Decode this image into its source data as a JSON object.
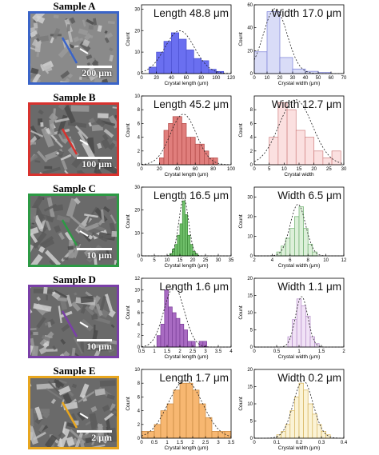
{
  "panels": [
    {
      "title": "Sample A",
      "color": "#3a64c8",
      "scale_label": "200 μm",
      "length": {
        "annotation": "Length 48.8 μm",
        "fill": "#6a6ff0",
        "stroke": "#4a4fcf",
        "xlabel": "Crystal length (μm)",
        "ylabel": "Count",
        "xlim": [
          0,
          120
        ],
        "ylim": [
          0,
          32
        ],
        "xticks": [
          0,
          20,
          40,
          60,
          80,
          100,
          120
        ],
        "yticks": [
          0,
          10,
          20,
          30
        ],
        "bin_starts": [
          10,
          20,
          30,
          40,
          50,
          60,
          70,
          80,
          90,
          100
        ],
        "bin_width": 10,
        "values": [
          3,
          10,
          15,
          19,
          16,
          11,
          7,
          6,
          2,
          1
        ]
      },
      "width": {
        "annotation": "Width 17.0 μm",
        "fill": "#d9dcf7",
        "stroke": "#7a7fd8",
        "xlabel": "Crystal width (μm)",
        "ylabel": "Count",
        "xlim": [
          0,
          70
        ],
        "ylim": [
          0,
          60
        ],
        "xticks": [
          0,
          10,
          20,
          30,
          40,
          50,
          60,
          70
        ],
        "yticks": [
          0,
          20,
          40,
          60
        ],
        "bin_starts": [
          0,
          10,
          20,
          30,
          40,
          50
        ],
        "bin_width": 10,
        "values": [
          19,
          54,
          14,
          4,
          2,
          1
        ]
      }
    },
    {
      "title": "Sample B",
      "color": "#d8322e",
      "scale_label": "100 μm",
      "length": {
        "annotation": "Length 45.2 μm",
        "fill": "#e07e7c",
        "stroke": "#b24a48",
        "xlabel": "Crystal length (μm)",
        "ylabel": "Count",
        "xlim": [
          0,
          100
        ],
        "ylim": [
          0,
          10
        ],
        "xticks": [
          0,
          20,
          40,
          60,
          80,
          100
        ],
        "yticks": [
          0,
          2,
          4,
          6,
          8,
          10
        ],
        "bin_starts": [
          20,
          25,
          30,
          35,
          40,
          45,
          50,
          55,
          60,
          65,
          70,
          75,
          80
        ],
        "bin_width": 5,
        "values": [
          1,
          5,
          6,
          7,
          7,
          6,
          4,
          4,
          3,
          3,
          2,
          1,
          1
        ]
      },
      "width": {
        "annotation": "Width 12.7 μm",
        "fill": "#fbe0e0",
        "stroke": "#d08080",
        "xlabel": "Crystal width",
        "ylabel": "Count",
        "xlim": [
          0,
          30
        ],
        "ylim": [
          0,
          10
        ],
        "xticks": [
          0,
          5,
          10,
          15,
          20,
          25,
          30
        ],
        "yticks": [
          0,
          2,
          4,
          6,
          8
        ],
        "bin_starts": [
          5,
          8,
          11,
          14,
          17,
          20,
          23,
          26
        ],
        "bin_width": 3,
        "values": [
          4,
          9,
          8,
          5,
          4,
          2,
          1,
          2
        ]
      }
    },
    {
      "title": "Sample C",
      "color": "#2c9a44",
      "scale_label": "10 μm",
      "length": {
        "annotation": "Length 16.5 μm",
        "fill": "#6fbf6a",
        "stroke": "#3c8a38",
        "xlabel": "Crystal length (μm)",
        "ylabel": "Count",
        "xlim": [
          0,
          35
        ],
        "ylim": [
          0,
          30
        ],
        "xticks": [
          0,
          5,
          10,
          15,
          20,
          25,
          30,
          35
        ],
        "yticks": [
          0,
          10,
          20,
          30
        ],
        "bin_starts": [
          11,
          12,
          13,
          14,
          15,
          16,
          17,
          18,
          19,
          20,
          21
        ],
        "bin_width": 1,
        "values": [
          1,
          3,
          5,
          9,
          14,
          24,
          18,
          9,
          5,
          2,
          1
        ]
      },
      "width": {
        "annotation": "Width 6.5 μm",
        "fill": "#ddf0da",
        "stroke": "#70b070",
        "xlabel": "Crystal width (μm)",
        "ylabel": "Count",
        "xlim": [
          2,
          12
        ],
        "ylim": [
          0,
          35
        ],
        "xticks": [
          2,
          4,
          6,
          8,
          10,
          12
        ],
        "yticks": [
          0,
          10,
          20,
          30
        ],
        "bin_starts": [
          4.5,
          5,
          5.5,
          6,
          6.5,
          7,
          7.5,
          8,
          8.5
        ],
        "bin_width": 0.5,
        "values": [
          2,
          5,
          9,
          14,
          20,
          25,
          14,
          6,
          2
        ]
      }
    },
    {
      "title": "Sample D",
      "color": "#7a3fa8",
      "scale_label": "10 μm",
      "length": {
        "annotation": "Length 1.6 μm",
        "fill": "#a86ac2",
        "stroke": "#7a3f98",
        "xlabel": "Crystal length (μm)",
        "ylabel": "Count",
        "xlim": [
          0.5,
          4.0
        ],
        "ylim": [
          0,
          12
        ],
        "xticks": [
          0.5,
          1.0,
          1.5,
          2.0,
          2.5,
          3.0,
          3.5,
          4.0
        ],
        "yticks": [
          0,
          2,
          4,
          6,
          8,
          10,
          12
        ],
        "bin_starts": [
          1.1,
          1.25,
          1.4,
          1.55,
          1.7,
          1.85,
          2.0,
          2.15,
          2.3,
          2.45,
          2.6,
          2.75,
          2.9
        ],
        "bin_width": 0.15,
        "values": [
          2,
          4,
          10,
          7,
          6,
          5,
          4,
          3,
          1,
          1,
          0,
          1,
          1
        ]
      },
      "width": {
        "annotation": "Width 1.1 μm",
        "fill": "#f1e2f6",
        "stroke": "#b48cc8",
        "xlabel": "Crystal width (μm)",
        "ylabel": "Count",
        "xlim": [
          0.0,
          2.0
        ],
        "ylim": [
          0,
          20
        ],
        "xticks": [
          0.0,
          0.5,
          1.0,
          1.5,
          2.0
        ],
        "yticks": [
          0,
          5,
          10,
          15,
          20
        ],
        "bin_starts": [
          0.75,
          0.85,
          0.95,
          1.05,
          1.15,
          1.25,
          1.35
        ],
        "bin_width": 0.1,
        "values": [
          3,
          8,
          14,
          12,
          9,
          3,
          1
        ]
      }
    },
    {
      "title": "Sample E",
      "color": "#e8a61e",
      "scale_label": "2 μm",
      "length": {
        "annotation": "Length 1.7 μm",
        "fill": "#f7b771",
        "stroke": "#c78840",
        "xlabel": "Crystal length (μm)",
        "ylabel": "Count",
        "xlim": [
          0.0,
          3.5
        ],
        "ylim": [
          0,
          10
        ],
        "xticks": [
          0.0,
          0.5,
          1.0,
          1.5,
          2.0,
          2.5,
          3.0,
          3.5
        ],
        "yticks": [
          0,
          2,
          4,
          6,
          8,
          10
        ],
        "bin_starts": [
          0.0,
          0.25,
          0.5,
          0.75,
          1.0,
          1.25,
          1.5,
          1.75,
          2.0,
          2.25,
          2.5,
          2.75,
          3.0,
          3.25
        ],
        "bin_width": 0.25,
        "values": [
          1,
          1,
          2,
          4,
          5,
          7,
          8,
          8,
          7,
          5,
          3,
          1,
          1,
          1
        ]
      },
      "width": {
        "annotation": "Width 0.2 μm",
        "fill": "#fbf3d6",
        "stroke": "#d6b45c",
        "xlabel": "Crystal width (μm)",
        "ylabel": "Count",
        "xlim": [
          0.0,
          0.4
        ],
        "ylim": [
          0,
          20
        ],
        "xticks": [
          0.0,
          0.1,
          0.2,
          0.3,
          0.4
        ],
        "yticks": [
          0,
          5,
          10,
          15,
          20
        ],
        "bin_starts": [
          0.1,
          0.12,
          0.14,
          0.16,
          0.18,
          0.2,
          0.22,
          0.24,
          0.26,
          0.28,
          0.3,
          0.32
        ],
        "bin_width": 0.02,
        "values": [
          1,
          2,
          4,
          8,
          12,
          16,
          14,
          10,
          7,
          4,
          2,
          1
        ]
      }
    }
  ],
  "chart_data": [
    {
      "type": "bar",
      "title": "Length 48.8 μm",
      "xlabel": "Crystal length (μm)",
      "ylabel": "Count",
      "xlim": [
        0,
        120
      ],
      "ylim": [
        0,
        32
      ],
      "categories": [
        "10-20",
        "20-30",
        "30-40",
        "40-50",
        "50-60",
        "60-70",
        "70-80",
        "80-90",
        "90-100",
        "100-110"
      ],
      "values": [
        3,
        10,
        15,
        19,
        16,
        11,
        7,
        6,
        2,
        1
      ]
    },
    {
      "type": "bar",
      "title": "Width 17.0 μm",
      "xlabel": "Crystal width (μm)",
      "ylabel": "Count",
      "xlim": [
        0,
        70
      ],
      "ylim": [
        0,
        60
      ],
      "categories": [
        "0-10",
        "10-20",
        "20-30",
        "30-40",
        "40-50",
        "50-60"
      ],
      "values": [
        19,
        54,
        14,
        4,
        2,
        1
      ]
    },
    {
      "type": "bar",
      "title": "Length 45.2 μm",
      "xlabel": "Crystal length (μm)",
      "ylabel": "Count",
      "xlim": [
        0,
        100
      ],
      "ylim": [
        0,
        10
      ],
      "categories": [
        "20-25",
        "25-30",
        "30-35",
        "35-40",
        "40-45",
        "45-50",
        "50-55",
        "55-60",
        "60-65",
        "65-70",
        "70-75",
        "75-80",
        "80-85"
      ],
      "values": [
        1,
        5,
        6,
        7,
        7,
        6,
        4,
        4,
        3,
        3,
        2,
        1,
        1
      ]
    },
    {
      "type": "bar",
      "title": "Width 12.7 μm",
      "xlabel": "Crystal width",
      "ylabel": "Count",
      "xlim": [
        0,
        30
      ],
      "ylim": [
        0,
        10
      ],
      "categories": [
        "5-8",
        "8-11",
        "11-14",
        "14-17",
        "17-20",
        "20-23",
        "23-26",
        "26-29"
      ],
      "values": [
        4,
        9,
        8,
        5,
        4,
        2,
        1,
        2
      ]
    },
    {
      "type": "bar",
      "title": "Length 16.5 μm",
      "xlabel": "Crystal length (μm)",
      "ylabel": "Count",
      "xlim": [
        0,
        35
      ],
      "ylim": [
        0,
        30
      ],
      "categories": [
        "11-12",
        "12-13",
        "13-14",
        "14-15",
        "15-16",
        "16-17",
        "17-18",
        "18-19",
        "19-20",
        "20-21",
        "21-22"
      ],
      "values": [
        1,
        3,
        5,
        9,
        14,
        24,
        18,
        9,
        5,
        2,
        1
      ]
    },
    {
      "type": "bar",
      "title": "Width 6.5 μm",
      "xlabel": "Crystal width (μm)",
      "ylabel": "Count",
      "xlim": [
        2,
        12
      ],
      "ylim": [
        0,
        35
      ],
      "categories": [
        "4.5-5",
        "5-5.5",
        "5.5-6",
        "6-6.5",
        "6.5-7",
        "7-7.5",
        "7.5-8",
        "8-8.5",
        "8.5-9"
      ],
      "values": [
        2,
        5,
        9,
        14,
        20,
        25,
        14,
        6,
        2
      ]
    },
    {
      "type": "bar",
      "title": "Length 1.6 μm",
      "xlabel": "Crystal length (μm)",
      "ylabel": "Count",
      "xlim": [
        0.5,
        4.0
      ],
      "ylim": [
        0,
        12
      ],
      "categories": [
        "1.10",
        "1.25",
        "1.40",
        "1.55",
        "1.70",
        "1.85",
        "2.00",
        "2.15",
        "2.30",
        "2.45",
        "2.60",
        "2.75",
        "2.90"
      ],
      "values": [
        2,
        4,
        10,
        7,
        6,
        5,
        4,
        3,
        1,
        1,
        0,
        1,
        1
      ]
    },
    {
      "type": "bar",
      "title": "Width 1.1 μm",
      "xlabel": "Crystal width (μm)",
      "ylabel": "Count",
      "xlim": [
        0.0,
        2.0
      ],
      "ylim": [
        0,
        20
      ],
      "categories": [
        "0.75",
        "0.85",
        "0.95",
        "1.05",
        "1.15",
        "1.25",
        "1.35"
      ],
      "values": [
        3,
        8,
        14,
        12,
        9,
        3,
        1
      ]
    },
    {
      "type": "bar",
      "title": "Length 1.7 μm",
      "xlabel": "Crystal length (μm)",
      "ylabel": "Count",
      "xlim": [
        0.0,
        3.5
      ],
      "ylim": [
        0,
        10
      ],
      "categories": [
        "0.00",
        "0.25",
        "0.50",
        "0.75",
        "1.00",
        "1.25",
        "1.50",
        "1.75",
        "2.00",
        "2.25",
        "2.50",
        "2.75",
        "3.00",
        "3.25"
      ],
      "values": [
        1,
        1,
        2,
        4,
        5,
        7,
        8,
        8,
        7,
        5,
        3,
        1,
        1,
        1
      ]
    },
    {
      "type": "bar",
      "title": "Width 0.2 μm",
      "xlabel": "Crystal width (μm)",
      "ylabel": "Count",
      "xlim": [
        0.0,
        0.4
      ],
      "ylim": [
        0,
        20
      ],
      "categories": [
        "0.10",
        "0.12",
        "0.14",
        "0.16",
        "0.18",
        "0.20",
        "0.22",
        "0.24",
        "0.26",
        "0.28",
        "0.30",
        "0.32"
      ],
      "values": [
        1,
        2,
        4,
        8,
        12,
        16,
        14,
        10,
        7,
        4,
        2,
        1
      ]
    }
  ]
}
